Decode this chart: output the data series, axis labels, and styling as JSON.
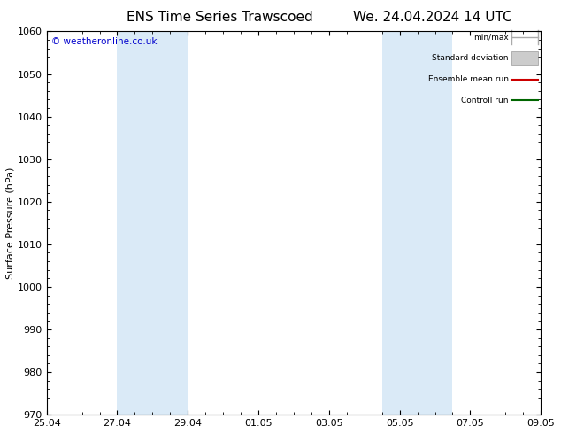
{
  "title_left": "ENS Time Series Trawscoed",
  "title_right": "We. 24.04.2024 14 UTC",
  "ylabel": "Surface Pressure (hPa)",
  "copyright": "© weatheronline.co.uk",
  "ylim": [
    970,
    1060
  ],
  "yticks": [
    970,
    980,
    990,
    1000,
    1010,
    1020,
    1030,
    1040,
    1050,
    1060
  ],
  "xtick_labels": [
    "25.04",
    "27.04",
    "29.04",
    "01.05",
    "03.05",
    "05.05",
    "07.05",
    "09.05"
  ],
  "xtick_positions": [
    0,
    2,
    4,
    6,
    8,
    10,
    12,
    14
  ],
  "x_min": 0,
  "x_max": 14,
  "shaded_bands": [
    {
      "x_start": 2,
      "x_end": 4,
      "color": "#daeaf7"
    },
    {
      "x_start": 9.5,
      "x_end": 11.5,
      "color": "#daeaf7"
    }
  ],
  "background_color": "#ffffff",
  "plot_bg_color": "#ffffff",
  "border_color": "#000000",
  "title_fontsize": 11,
  "label_fontsize": 8,
  "tick_fontsize": 8,
  "copyright_color": "#0000cc",
  "legend_items": [
    {
      "label": "min/max",
      "color": "#aaaaaa",
      "style": "minmax"
    },
    {
      "label": "Standard deviation",
      "color": "#cccccc",
      "style": "fill"
    },
    {
      "label": "Ensemble mean run",
      "color": "#cc0000",
      "style": "line"
    },
    {
      "label": "Controll run",
      "color": "#006600",
      "style": "line"
    }
  ]
}
